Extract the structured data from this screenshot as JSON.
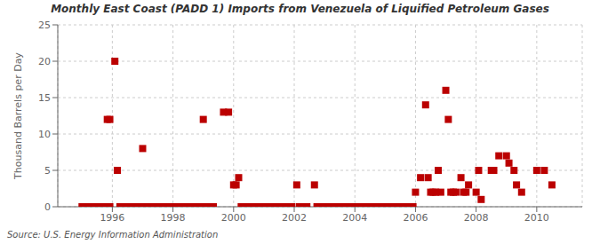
{
  "chart_data": {
    "type": "scatter",
    "title": "Monthly East Coast (PADD 1) Imports from Venezuela of Liquified Petroleum Gases",
    "ylabel": "Thousand Barrels per Day",
    "annotations": [
      "Source: U.S. Energy Information Administration"
    ],
    "color": "#BB0000",
    "marker": "square",
    "grid": true,
    "xlim": [
      1994.2,
      2011.5
    ],
    "ylim": [
      0,
      25
    ],
    "xticks": [
      1996,
      1998,
      2000,
      2002,
      2004,
      2006,
      2008,
      2010
    ],
    "yticks": [
      0,
      5,
      10,
      15,
      20,
      25
    ],
    "x": [
      1995.0,
      1995.083,
      1995.167,
      1995.25,
      1995.333,
      1995.417,
      1995.5,
      1995.583,
      1995.667,
      1995.75,
      1995.833,
      1995.917,
      1995.833,
      1995.917,
      1996.083,
      1996.167,
      1996.25,
      1996.333,
      1996.417,
      1996.5,
      1996.583,
      1996.667,
      1996.75,
      1996.833,
      1996.917,
      1997.0,
      1997.083,
      1997.167,
      1997.25,
      1997.333,
      1997.417,
      1997.5,
      1997.583,
      1997.667,
      1997.75,
      1997.833,
      1997.917,
      1998.0,
      1998.083,
      1998.167,
      1998.25,
      1998.333,
      1998.417,
      1998.5,
      1998.583,
      1998.667,
      1998.75,
      1998.833,
      1998.917,
      1999.0,
      1999.083,
      1999.167,
      1999.25,
      1999.333,
      1999.667,
      1999.833,
      2000.0,
      2000.083,
      2000.167,
      2000.25,
      2000.333,
      2000.417,
      2000.5,
      2000.583,
      2000.667,
      2000.75,
      2000.833,
      2000.917,
      2001.0,
      2001.083,
      2001.167,
      2001.25,
      2001.333,
      2001.417,
      2001.5,
      2001.583,
      2001.667,
      2001.75,
      2001.833,
      2001.917,
      2002.083,
      2002.167,
      2002.25,
      2002.333,
      2002.417,
      2002.667,
      2002.75,
      2002.833,
      2002.917,
      2003.0,
      2003.083,
      2003.167,
      2003.25,
      2003.333,
      2003.417,
      2003.5,
      2003.583,
      2003.667,
      2003.75,
      2003.833,
      2003.917,
      2004.0,
      2004.083,
      2004.167,
      2004.25,
      2004.333,
      2004.417,
      2004.5,
      2004.583,
      2004.667,
      2004.75,
      2004.833,
      2004.917,
      2005.0,
      2005.083,
      2005.167,
      2005.25,
      2005.333,
      2005.417,
      2005.5,
      2005.583,
      2005.667,
      2005.75,
      2005.833,
      2005.917,
      2006.0,
      2006.167,
      2006.333,
      2006.417,
      2006.5,
      2006.583,
      2006.667,
      2006.75,
      2006.833,
      2007.0,
      2007.083,
      2007.167,
      2007.25,
      2007.333,
      2007.5,
      2007.583,
      2007.667,
      2007.75,
      2008.0,
      2008.083,
      2008.167,
      2008.5,
      2008.583,
      2008.75,
      2009.0,
      2009.083,
      2009.25,
      2009.333,
      2009.5,
      2010.0,
      2010.25,
      2010.5
    ],
    "values": [
      0,
      0,
      0,
      0,
      0,
      0,
      0,
      0,
      0,
      0,
      0,
      0,
      12,
      12,
      20,
      5,
      0,
      0,
      0,
      0,
      0,
      0,
      0,
      0,
      0,
      8,
      0,
      0,
      0,
      0,
      0,
      0,
      0,
      0,
      0,
      0,
      0,
      0,
      0,
      0,
      0,
      0,
      0,
      0,
      0,
      0,
      0,
      0,
      0,
      12,
      0,
      0,
      0,
      0,
      13,
      13,
      3,
      3,
      4,
      0,
      0,
      0,
      0,
      0,
      0,
      0,
      0,
      0,
      0,
      0,
      0,
      0,
      0,
      0,
      0,
      0,
      0,
      0,
      0,
      0,
      3,
      0,
      0,
      0,
      0,
      3,
      0,
      0,
      0,
      0,
      0,
      0,
      0,
      0,
      0,
      0,
      0,
      0,
      0,
      0,
      0,
      0,
      0,
      0,
      0,
      0,
      0,
      0,
      0,
      0,
      0,
      0,
      0,
      0,
      0,
      0,
      0,
      0,
      0,
      0,
      0,
      0,
      0,
      0,
      0,
      2,
      4,
      14,
      4,
      2,
      2,
      2,
      5,
      2,
      16,
      12,
      2,
      2,
      2,
      4,
      2,
      2,
      3,
      2,
      5,
      1,
      5,
      5,
      7,
      7,
      6,
      5,
      3,
      2,
      5,
      5,
      3
    ]
  }
}
